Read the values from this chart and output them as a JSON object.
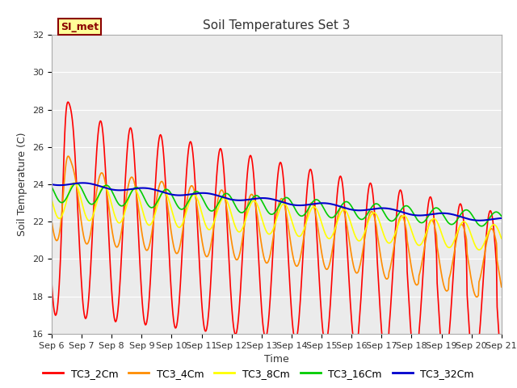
{
  "title": "Soil Temperatures Set 3",
  "xlabel": "Time",
  "ylabel": "Soil Temperature (C)",
  "ylim": [
    16,
    32
  ],
  "xlim": [
    0,
    15
  ],
  "x_tick_labels": [
    "Sep 6",
    "Sep 7",
    "Sep 8",
    "Sep 9",
    "Sep 10",
    "Sep 11",
    "Sep 12",
    "Sep 13",
    "Sep 14",
    "Sep 15",
    "Sep 16",
    "Sep 17",
    "Sep 18",
    "Sep 19",
    "Sep 20",
    "Sep 21"
  ],
  "series_colors": [
    "#ff0000",
    "#ff8c00",
    "#ffff00",
    "#00cc00",
    "#0000cd"
  ],
  "series_names": [
    "TC3_2Cm",
    "TC3_4Cm",
    "TC3_8Cm",
    "TC3_16Cm",
    "TC3_32Cm"
  ],
  "annotation_text": "SI_met",
  "annotation_bg": "#ffff99",
  "annotation_border": "#8b0000",
  "background_color": "#ebebeb",
  "title_fontsize": 11,
  "axis_label_fontsize": 9,
  "tick_fontsize": 8,
  "legend_fontsize": 9
}
